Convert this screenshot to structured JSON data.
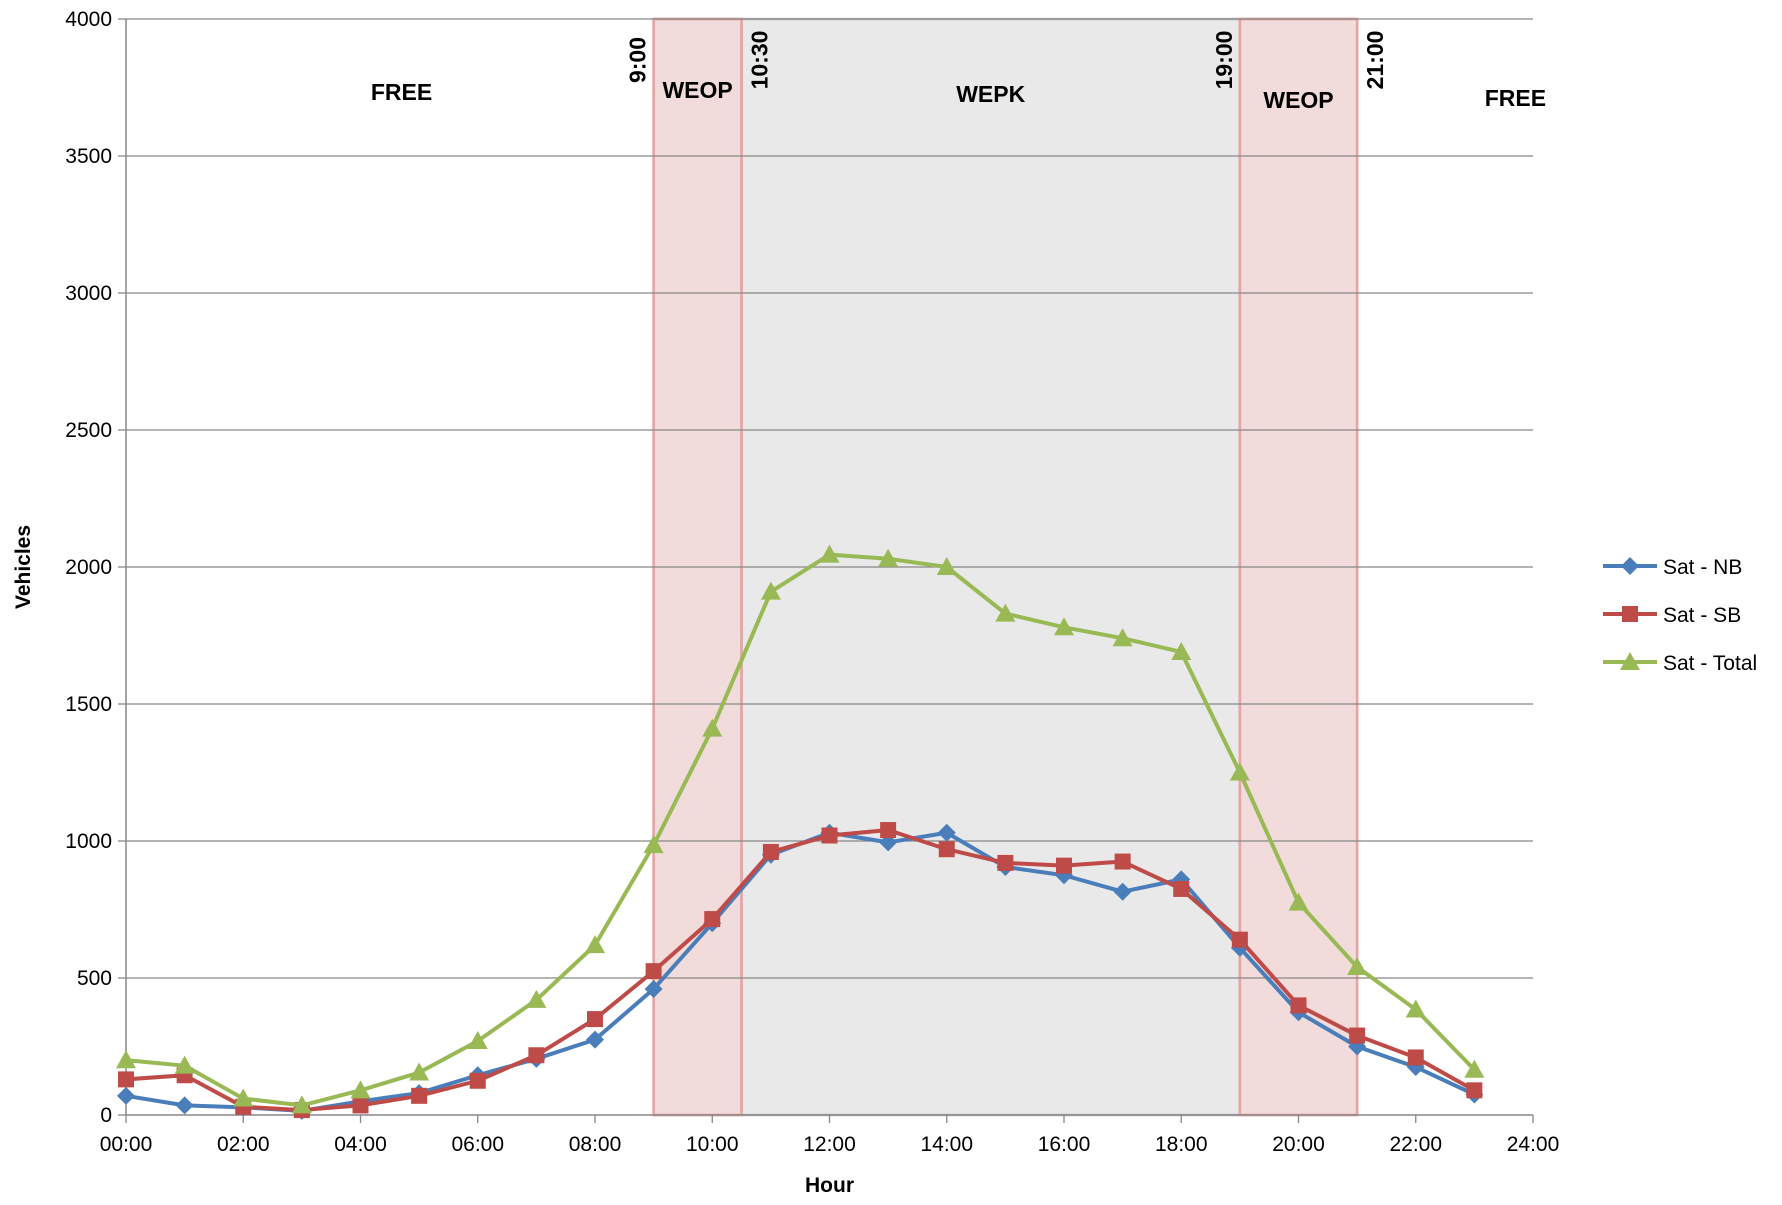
{
  "colors": {
    "background": "#ffffff",
    "gridline": "#878787",
    "axis": "#878787",
    "weop_fill": "#f2dcdb",
    "weop_stroke": "#e6a5a4",
    "wepk_fill": "#e9e9e9",
    "wepk_stroke": "#bfbfbf"
  },
  "chart_data": {
    "type": "line",
    "title": "",
    "xlabel": "Hour",
    "ylabel": "Vehicles",
    "xlim": [
      0,
      24
    ],
    "ylim": [
      0,
      4000
    ],
    "x_ticks": [
      "00:00",
      "02:00",
      "04:00",
      "06:00",
      "08:00",
      "10:00",
      "12:00",
      "14:00",
      "16:00",
      "18:00",
      "20:00",
      "22:00",
      "24:00"
    ],
    "y_ticks": [
      "0",
      "500",
      "1000",
      "1500",
      "2000",
      "2500",
      "3000",
      "3500",
      "4000"
    ],
    "grid": true,
    "legend_position": "right",
    "x": [
      0,
      1,
      2,
      3,
      4,
      5,
      6,
      7,
      8,
      9,
      10,
      11,
      12,
      13,
      14,
      15,
      16,
      17,
      18,
      19,
      20,
      21,
      22,
      23
    ],
    "series": [
      {
        "name": "Sat - NB",
        "color": "#4a7ebb",
        "marker": "diamond",
        "values": [
          70,
          35,
          28,
          15,
          50,
          80,
          145,
          205,
          275,
          460,
          700,
          950,
          1030,
          995,
          1030,
          905,
          875,
          815,
          860,
          610,
          375,
          250,
          175,
          75
        ]
      },
      {
        "name": "Sat - SB",
        "color": "#be4b48",
        "marker": "square",
        "values": [
          130,
          145,
          30,
          18,
          35,
          70,
          125,
          218,
          350,
          525,
          715,
          960,
          1020,
          1040,
          970,
          920,
          910,
          925,
          825,
          640,
          400,
          290,
          210,
          90
        ]
      },
      {
        "name": "Sat - Total",
        "color": "#98b954",
        "marker": "triangle",
        "values": [
          200,
          180,
          60,
          35,
          90,
          155,
          270,
          420,
          620,
          985,
          1410,
          1910,
          2045,
          2030,
          2000,
          1830,
          1780,
          1740,
          1690,
          1250,
          775,
          540,
          385,
          165
        ]
      }
    ],
    "bands": [
      {
        "start": 9.0,
        "end": 10.5,
        "kind": "weop",
        "label": "WEOP"
      },
      {
        "start": 10.5,
        "end": 19.0,
        "kind": "wepk",
        "label": "WEPK"
      },
      {
        "start": 19.0,
        "end": 21.0,
        "kind": "weop",
        "label": "WEOP"
      }
    ],
    "free_labels": [
      {
        "at": 4.7,
        "text": "FREE"
      },
      {
        "at": 23.7,
        "text": "FREE"
      }
    ],
    "time_markers": [
      {
        "at": 9.0,
        "text": "9:00"
      },
      {
        "at": 10.5,
        "text": "10:30"
      },
      {
        "at": 19.0,
        "text": "19:00"
      },
      {
        "at": 21.0,
        "text": "21:00"
      }
    ]
  }
}
